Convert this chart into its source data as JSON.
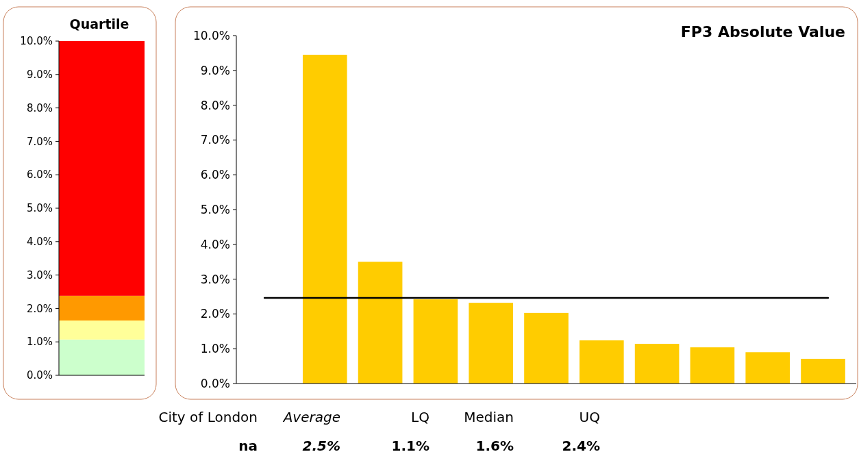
{
  "chart_data": [
    {
      "type": "bar",
      "title": "Quartile",
      "stacked": true,
      "categories": [
        null
      ],
      "series": [
        {
          "color": "#ccffcc",
          "values": [
            1.07
          ]
        },
        {
          "color": "#ffff99",
          "values": [
            0.57
          ]
        },
        {
          "color": "#ff9900",
          "values": [
            0.74
          ]
        },
        {
          "color": "#ff0000",
          "values": [
            7.62
          ]
        }
      ],
      "ylim": [
        0,
        10
      ],
      "yticks": [
        {
          "value": 0,
          "label": "0.0%"
        },
        {
          "value": 1,
          "label": "1.0%"
        },
        {
          "value": 2,
          "label": "2.0%"
        },
        {
          "value": 3,
          "label": "3.0%"
        },
        {
          "value": 4,
          "label": "4.0%"
        },
        {
          "value": 5,
          "label": "5.0%"
        },
        {
          "value": 6,
          "label": "6.0%"
        },
        {
          "value": 7,
          "label": "7.0%"
        },
        {
          "value": 8,
          "label": "8.0%"
        },
        {
          "value": 9,
          "label": "9.0%"
        },
        {
          "value": 10,
          "label": "10.0%"
        }
      ]
    },
    {
      "type": "bar",
      "title": "FP3 Absolute Value",
      "categories": [
        null,
        null,
        null,
        null,
        null,
        null,
        null,
        null,
        null,
        null,
        null
      ],
      "values": [
        null,
        9.45,
        3.5,
        2.42,
        2.32,
        2.03,
        1.24,
        1.14,
        1.04,
        0.9,
        0.71
      ],
      "color": "#ffcc00",
      "ylim": [
        0,
        10
      ],
      "yticks": [
        {
          "value": 0,
          "label": "0.0%"
        },
        {
          "value": 1,
          "label": "1.0%"
        },
        {
          "value": 2,
          "label": "2.0%"
        },
        {
          "value": 3,
          "label": "3.0%"
        },
        {
          "value": 4,
          "label": "4.0%"
        },
        {
          "value": 5,
          "label": "5.0%"
        },
        {
          "value": 6,
          "label": "6.0%"
        },
        {
          "value": 7,
          "label": "7.0%"
        },
        {
          "value": 8,
          "label": "8.0%"
        },
        {
          "value": 9,
          "label": "9.0%"
        },
        {
          "value": 10,
          "label": "10.0%"
        }
      ],
      "ref_lines": [
        {
          "axis": "y",
          "value": 2.46,
          "color": "#000000"
        }
      ],
      "annotations": [
        "City of London",
        "Average",
        "LQ",
        "Median",
        "UQ",
        "na",
        "2.5%",
        "1.1%",
        "1.6%",
        "2.4%"
      ]
    }
  ]
}
